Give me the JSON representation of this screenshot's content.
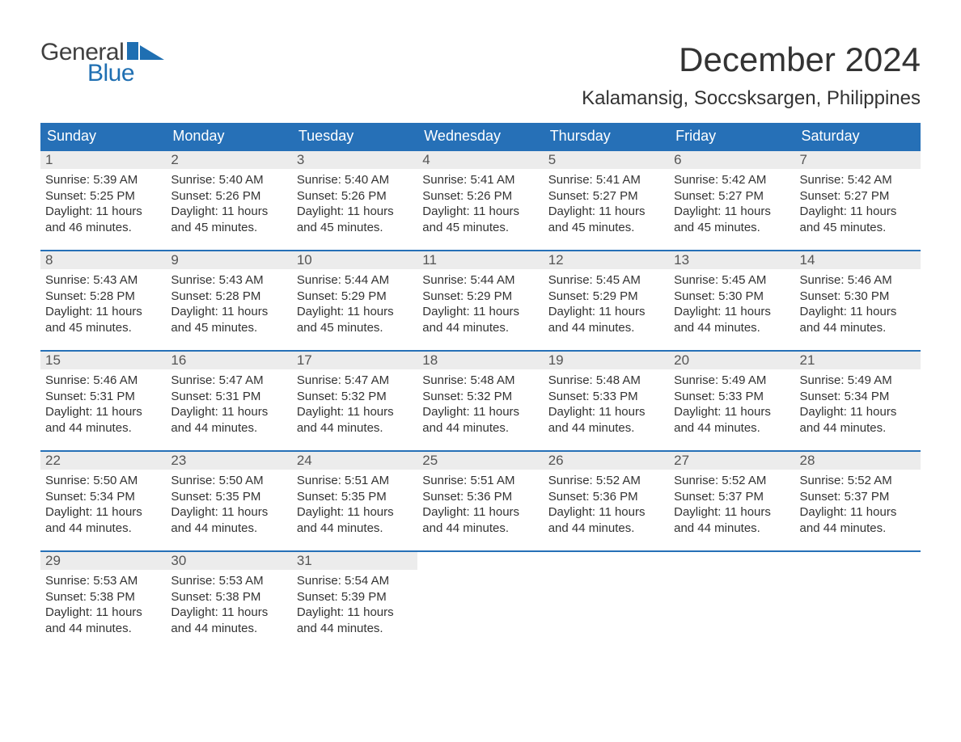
{
  "brand": {
    "part1": "General",
    "part2": "Blue",
    "logo_color": "#1f6fb2"
  },
  "title": "December 2024",
  "location": "Kalamansig, Soccsksargen, Philippines",
  "colors": {
    "header_bg": "#2670b7",
    "header_text": "#ffffff",
    "daynum_bg": "#ececec",
    "text": "#333333",
    "rule": "#2670b7"
  },
  "weekdays": [
    "Sunday",
    "Monday",
    "Tuesday",
    "Wednesday",
    "Thursday",
    "Friday",
    "Saturday"
  ],
  "weeks": [
    [
      {
        "n": "1",
        "sr": "Sunrise: 5:39 AM",
        "ss": "Sunset: 5:25 PM",
        "d1": "Daylight: 11 hours",
        "d2": "and 46 minutes."
      },
      {
        "n": "2",
        "sr": "Sunrise: 5:40 AM",
        "ss": "Sunset: 5:26 PM",
        "d1": "Daylight: 11 hours",
        "d2": "and 45 minutes."
      },
      {
        "n": "3",
        "sr": "Sunrise: 5:40 AM",
        "ss": "Sunset: 5:26 PM",
        "d1": "Daylight: 11 hours",
        "d2": "and 45 minutes."
      },
      {
        "n": "4",
        "sr": "Sunrise: 5:41 AM",
        "ss": "Sunset: 5:26 PM",
        "d1": "Daylight: 11 hours",
        "d2": "and 45 minutes."
      },
      {
        "n": "5",
        "sr": "Sunrise: 5:41 AM",
        "ss": "Sunset: 5:27 PM",
        "d1": "Daylight: 11 hours",
        "d2": "and 45 minutes."
      },
      {
        "n": "6",
        "sr": "Sunrise: 5:42 AM",
        "ss": "Sunset: 5:27 PM",
        "d1": "Daylight: 11 hours",
        "d2": "and 45 minutes."
      },
      {
        "n": "7",
        "sr": "Sunrise: 5:42 AM",
        "ss": "Sunset: 5:27 PM",
        "d1": "Daylight: 11 hours",
        "d2": "and 45 minutes."
      }
    ],
    [
      {
        "n": "8",
        "sr": "Sunrise: 5:43 AM",
        "ss": "Sunset: 5:28 PM",
        "d1": "Daylight: 11 hours",
        "d2": "and 45 minutes."
      },
      {
        "n": "9",
        "sr": "Sunrise: 5:43 AM",
        "ss": "Sunset: 5:28 PM",
        "d1": "Daylight: 11 hours",
        "d2": "and 45 minutes."
      },
      {
        "n": "10",
        "sr": "Sunrise: 5:44 AM",
        "ss": "Sunset: 5:29 PM",
        "d1": "Daylight: 11 hours",
        "d2": "and 45 minutes."
      },
      {
        "n": "11",
        "sr": "Sunrise: 5:44 AM",
        "ss": "Sunset: 5:29 PM",
        "d1": "Daylight: 11 hours",
        "d2": "and 44 minutes."
      },
      {
        "n": "12",
        "sr": "Sunrise: 5:45 AM",
        "ss": "Sunset: 5:29 PM",
        "d1": "Daylight: 11 hours",
        "d2": "and 44 minutes."
      },
      {
        "n": "13",
        "sr": "Sunrise: 5:45 AM",
        "ss": "Sunset: 5:30 PM",
        "d1": "Daylight: 11 hours",
        "d2": "and 44 minutes."
      },
      {
        "n": "14",
        "sr": "Sunrise: 5:46 AM",
        "ss": "Sunset: 5:30 PM",
        "d1": "Daylight: 11 hours",
        "d2": "and 44 minutes."
      }
    ],
    [
      {
        "n": "15",
        "sr": "Sunrise: 5:46 AM",
        "ss": "Sunset: 5:31 PM",
        "d1": "Daylight: 11 hours",
        "d2": "and 44 minutes."
      },
      {
        "n": "16",
        "sr": "Sunrise: 5:47 AM",
        "ss": "Sunset: 5:31 PM",
        "d1": "Daylight: 11 hours",
        "d2": "and 44 minutes."
      },
      {
        "n": "17",
        "sr": "Sunrise: 5:47 AM",
        "ss": "Sunset: 5:32 PM",
        "d1": "Daylight: 11 hours",
        "d2": "and 44 minutes."
      },
      {
        "n": "18",
        "sr": "Sunrise: 5:48 AM",
        "ss": "Sunset: 5:32 PM",
        "d1": "Daylight: 11 hours",
        "d2": "and 44 minutes."
      },
      {
        "n": "19",
        "sr": "Sunrise: 5:48 AM",
        "ss": "Sunset: 5:33 PM",
        "d1": "Daylight: 11 hours",
        "d2": "and 44 minutes."
      },
      {
        "n": "20",
        "sr": "Sunrise: 5:49 AM",
        "ss": "Sunset: 5:33 PM",
        "d1": "Daylight: 11 hours",
        "d2": "and 44 minutes."
      },
      {
        "n": "21",
        "sr": "Sunrise: 5:49 AM",
        "ss": "Sunset: 5:34 PM",
        "d1": "Daylight: 11 hours",
        "d2": "and 44 minutes."
      }
    ],
    [
      {
        "n": "22",
        "sr": "Sunrise: 5:50 AM",
        "ss": "Sunset: 5:34 PM",
        "d1": "Daylight: 11 hours",
        "d2": "and 44 minutes."
      },
      {
        "n": "23",
        "sr": "Sunrise: 5:50 AM",
        "ss": "Sunset: 5:35 PM",
        "d1": "Daylight: 11 hours",
        "d2": "and 44 minutes."
      },
      {
        "n": "24",
        "sr": "Sunrise: 5:51 AM",
        "ss": "Sunset: 5:35 PM",
        "d1": "Daylight: 11 hours",
        "d2": "and 44 minutes."
      },
      {
        "n": "25",
        "sr": "Sunrise: 5:51 AM",
        "ss": "Sunset: 5:36 PM",
        "d1": "Daylight: 11 hours",
        "d2": "and 44 minutes."
      },
      {
        "n": "26",
        "sr": "Sunrise: 5:52 AM",
        "ss": "Sunset: 5:36 PM",
        "d1": "Daylight: 11 hours",
        "d2": "and 44 minutes."
      },
      {
        "n": "27",
        "sr": "Sunrise: 5:52 AM",
        "ss": "Sunset: 5:37 PM",
        "d1": "Daylight: 11 hours",
        "d2": "and 44 minutes."
      },
      {
        "n": "28",
        "sr": "Sunrise: 5:52 AM",
        "ss": "Sunset: 5:37 PM",
        "d1": "Daylight: 11 hours",
        "d2": "and 44 minutes."
      }
    ],
    [
      {
        "n": "29",
        "sr": "Sunrise: 5:53 AM",
        "ss": "Sunset: 5:38 PM",
        "d1": "Daylight: 11 hours",
        "d2": "and 44 minutes."
      },
      {
        "n": "30",
        "sr": "Sunrise: 5:53 AM",
        "ss": "Sunset: 5:38 PM",
        "d1": "Daylight: 11 hours",
        "d2": "and 44 minutes."
      },
      {
        "n": "31",
        "sr": "Sunrise: 5:54 AM",
        "ss": "Sunset: 5:39 PM",
        "d1": "Daylight: 11 hours",
        "d2": "and 44 minutes."
      },
      {
        "empty": true
      },
      {
        "empty": true
      },
      {
        "empty": true
      },
      {
        "empty": true
      }
    ]
  ]
}
